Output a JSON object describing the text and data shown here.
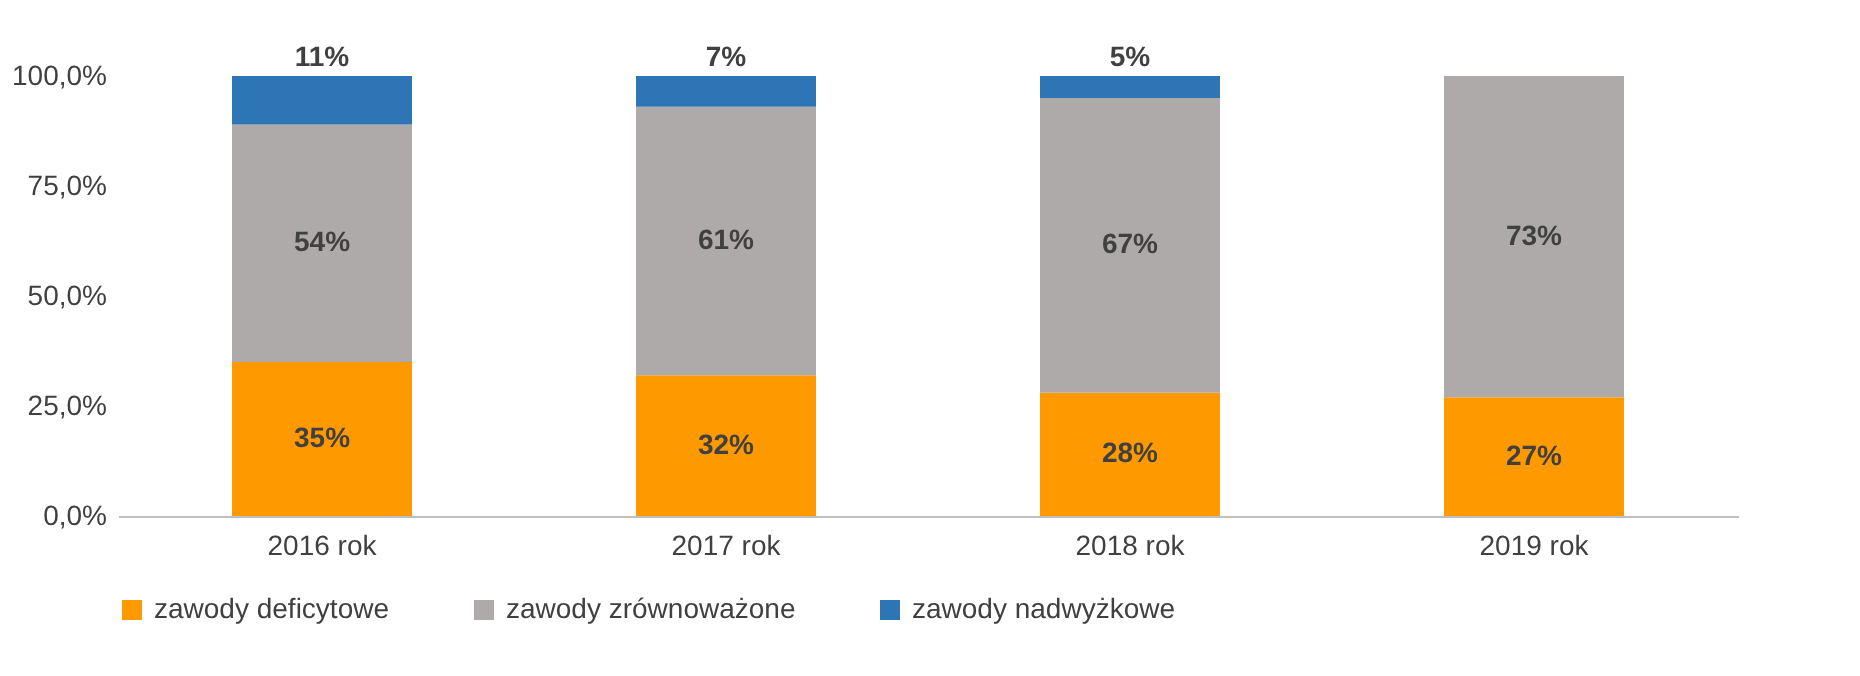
{
  "chart_data": {
    "type": "bar",
    "stacked": true,
    "categories": [
      "2016 rok",
      "2017 rok",
      "2018 rok",
      "2019 rok"
    ],
    "series": [
      {
        "name": "zawody deficytowe",
        "color": "#ff9900",
        "values": [
          35,
          32,
          28,
          27
        ],
        "value_labels": [
          "35%",
          "32%",
          "28%",
          "27%"
        ]
      },
      {
        "name": "zawody zrównoważone",
        "color": "#aeaaaa",
        "values": [
          54,
          61,
          67,
          73
        ],
        "value_labels": [
          "54%",
          "61%",
          "67%",
          "73%"
        ]
      },
      {
        "name": "zawody nadwyżkowe",
        "color": "#2e75b6",
        "values": [
          11,
          7,
          5,
          null
        ],
        "value_labels": [
          "11%",
          "7%",
          "5%",
          null
        ]
      }
    ],
    "ylim": [
      0,
      100
    ],
    "yticks": [
      {
        "value": 0,
        "label": "0,0%"
      },
      {
        "value": 25,
        "label": "25,0%"
      },
      {
        "value": 50,
        "label": "50,0%"
      },
      {
        "value": 75,
        "label": "75,0%"
      },
      {
        "value": 100,
        "label": "100,0%"
      }
    ],
    "grid": false,
    "legend": "bottom"
  }
}
